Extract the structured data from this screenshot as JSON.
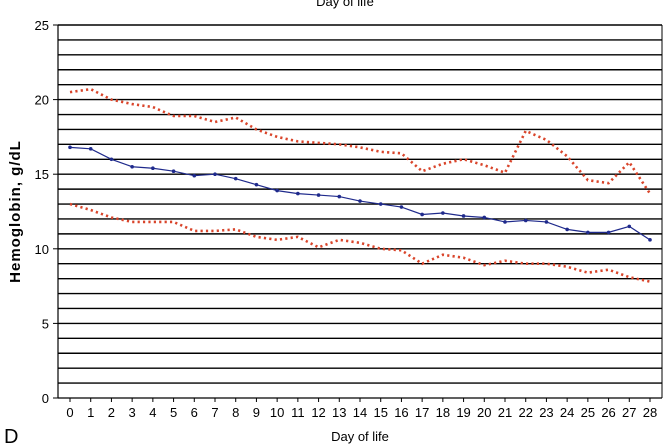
{
  "panel_label": "D",
  "top_text": "Day of life",
  "chart_data": {
    "type": "line",
    "title": "",
    "xlabel": "Day of life",
    "ylabel": "Hemoglobin, g/dL",
    "x": [
      0,
      1,
      2,
      3,
      4,
      5,
      6,
      7,
      8,
      9,
      10,
      11,
      12,
      13,
      14,
      15,
      16,
      17,
      18,
      19,
      20,
      21,
      22,
      23,
      24,
      25,
      26,
      27,
      28
    ],
    "ylim": [
      0,
      25
    ],
    "yticks": [
      0,
      5,
      10,
      15,
      20,
      25
    ],
    "grid_minor_step": 1,
    "legend": "none",
    "series": [
      {
        "name": "",
        "style": "dotted",
        "color": "#d9452b",
        "values": [
          20.5,
          20.7,
          20.0,
          19.7,
          19.5,
          18.9,
          18.9,
          18.5,
          18.8,
          18.0,
          17.5,
          17.2,
          17.1,
          17.0,
          16.8,
          16.5,
          16.4,
          15.2,
          15.7,
          16.0,
          15.6,
          15.1,
          17.9,
          17.3,
          16.2,
          14.6,
          14.4,
          15.8,
          13.7
        ]
      },
      {
        "name": "",
        "style": "solid",
        "color": "#1f2a8c",
        "values": [
          16.8,
          16.7,
          16.0,
          15.5,
          15.4,
          15.2,
          14.9,
          15.0,
          14.7,
          14.3,
          13.9,
          13.7,
          13.6,
          13.5,
          13.2,
          13.0,
          12.8,
          12.3,
          12.4,
          12.2,
          12.1,
          11.8,
          11.9,
          11.8,
          11.3,
          11.1,
          11.1,
          11.5,
          10.6
        ]
      },
      {
        "name": "",
        "style": "dotted",
        "color": "#d9452b",
        "values": [
          13.0,
          12.6,
          12.1,
          11.8,
          11.8,
          11.8,
          11.2,
          11.2,
          11.3,
          10.8,
          10.6,
          10.8,
          10.1,
          10.6,
          10.4,
          10.0,
          9.9,
          9.0,
          9.6,
          9.4,
          8.9,
          9.2,
          9.0,
          9.0,
          8.8,
          8.4,
          8.6,
          8.1,
          7.8
        ]
      }
    ]
  }
}
